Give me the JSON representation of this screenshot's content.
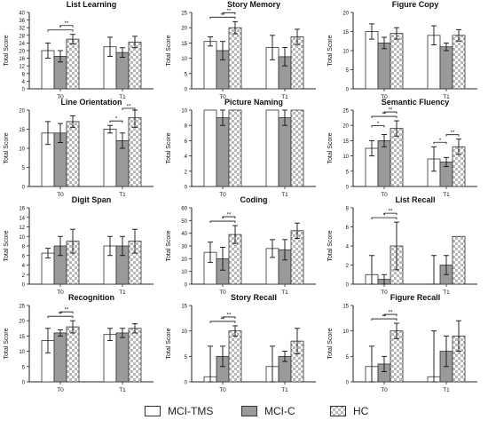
{
  "series": [
    {
      "name": "MCI-TMS",
      "fill": "#ffffff",
      "pattern": "none"
    },
    {
      "name": "MCI-C",
      "fill": "#9a9a9a",
      "pattern": "none"
    },
    {
      "name": "HC",
      "fill": "#ffffff",
      "pattern": "checker"
    }
  ],
  "chart_data": [
    {
      "type": "bar",
      "title": "List Learning",
      "ylabel": "Total Score",
      "categories": [
        "T0",
        "T1"
      ],
      "yticks": [
        0,
        4,
        8,
        12,
        16,
        20,
        24,
        28,
        32,
        36,
        40
      ],
      "ylim": [
        0,
        40
      ],
      "series": [
        {
          "name": "MCI-TMS",
          "values": [
            20,
            22
          ],
          "err": [
            4,
            5
          ]
        },
        {
          "name": "MCI-C",
          "values": [
            17,
            19
          ],
          "err": [
            3,
            2.5
          ]
        },
        {
          "name": "HC",
          "values": [
            26,
            24.5
          ],
          "err": [
            2.5,
            3
          ]
        }
      ],
      "brackets": [
        {
          "group": 0,
          "from": 0,
          "to": 2,
          "label": "*",
          "level": 0
        },
        {
          "group": 0,
          "from": 1,
          "to": 2,
          "label": "**",
          "level": 1
        }
      ]
    },
    {
      "type": "bar",
      "title": "Story Memory",
      "ylabel": "Total Score",
      "categories": [
        "T0",
        "T1"
      ],
      "yticks": [
        0,
        5,
        10,
        15,
        20,
        25
      ],
      "ylim": [
        0,
        25
      ],
      "series": [
        {
          "name": "MCI-TMS",
          "values": [
            15.5,
            13.5
          ],
          "err": [
            1.5,
            4
          ]
        },
        {
          "name": "MCI-C",
          "values": [
            12.5,
            10.5
          ],
          "err": [
            3,
            3
          ]
        },
        {
          "name": "HC",
          "values": [
            20,
            17
          ],
          "err": [
            2,
            2.5
          ]
        }
      ],
      "brackets": [
        {
          "group": 0,
          "from": 0,
          "to": 2,
          "label": "**",
          "level": 0
        },
        {
          "group": 0,
          "from": 1,
          "to": 2,
          "label": "**",
          "level": 1
        }
      ]
    },
    {
      "type": "bar",
      "title": "Figure Copy",
      "ylabel": "Total Score",
      "categories": [
        "T0",
        "T1"
      ],
      "yticks": [
        0,
        5,
        10,
        15,
        20
      ],
      "ylim": [
        0,
        20
      ],
      "series": [
        {
          "name": "MCI-TMS",
          "values": [
            15,
            14
          ],
          "err": [
            2,
            2.5
          ]
        },
        {
          "name": "MCI-C",
          "values": [
            12,
            11
          ],
          "err": [
            1.5,
            1
          ]
        },
        {
          "name": "HC",
          "values": [
            14.5,
            14
          ],
          "err": [
            1.5,
            1.5
          ]
        }
      ],
      "brackets": []
    },
    {
      "type": "bar",
      "title": "Line Orientation",
      "ylabel": "Total Score",
      "categories": [
        "T0",
        "T1"
      ],
      "yticks": [
        0,
        5,
        10,
        15,
        20
      ],
      "ylim": [
        0,
        20
      ],
      "series": [
        {
          "name": "MCI-TMS",
          "values": [
            14,
            15
          ],
          "err": [
            3,
            1
          ]
        },
        {
          "name": "MCI-C",
          "values": [
            14,
            12
          ],
          "err": [
            2.5,
            2
          ]
        },
        {
          "name": "HC",
          "values": [
            17,
            18
          ],
          "err": [
            1.5,
            2.5
          ]
        }
      ],
      "brackets": [
        {
          "group": 1,
          "from": 0,
          "to": 1,
          "label": "*",
          "level": 0
        },
        {
          "group": 1,
          "from": 1,
          "to": 2,
          "label": "**",
          "level": 0
        }
      ]
    },
    {
      "type": "bar",
      "title": "Picture Naming",
      "ylabel": "Total Score",
      "categories": [
        "T0",
        "T1"
      ],
      "yticks": [
        0,
        2,
        4,
        6,
        8,
        10
      ],
      "ylim": [
        0,
        10
      ],
      "series": [
        {
          "name": "MCI-TMS",
          "values": [
            10,
            10
          ],
          "err": [
            0,
            0
          ]
        },
        {
          "name": "MCI-C",
          "values": [
            9,
            9
          ],
          "err": [
            1,
            1
          ]
        },
        {
          "name": "HC",
          "values": [
            10,
            10
          ],
          "err": [
            0,
            0
          ]
        }
      ],
      "brackets": []
    },
    {
      "type": "bar",
      "title": "Semantic Fluency",
      "ylabel": "Total Score",
      "categories": [
        "T0",
        "T1"
      ],
      "yticks": [
        0,
        5,
        10,
        15,
        20,
        25
      ],
      "ylim": [
        0,
        25
      ],
      "series": [
        {
          "name": "MCI-TMS",
          "values": [
            12.5,
            9
          ],
          "err": [
            2.5,
            4
          ]
        },
        {
          "name": "MCI-C",
          "values": [
            15,
            8
          ],
          "err": [
            2,
            1.5
          ]
        },
        {
          "name": "HC",
          "values": [
            19,
            13
          ],
          "err": [
            2.5,
            2.5
          ]
        }
      ],
      "brackets": [
        {
          "group": 0,
          "from": 0,
          "to": 2,
          "label": "**",
          "level": 0
        },
        {
          "group": 0,
          "from": 0,
          "to": 1,
          "label": "*",
          "level": 1
        },
        {
          "group": 0,
          "from": 1,
          "to": 2,
          "label": "**",
          "level": 1
        },
        {
          "group": 1,
          "from": 0,
          "to": 1,
          "label": "*",
          "level": 0
        },
        {
          "group": 1,
          "from": 1,
          "to": 2,
          "label": "**",
          "level": 0
        }
      ]
    },
    {
      "type": "bar",
      "title": "Digit Span",
      "ylabel": "Total Score",
      "categories": [
        "T0",
        "T1"
      ],
      "yticks": [
        0,
        2,
        4,
        6,
        8,
        10,
        12,
        14,
        16
      ],
      "ylim": [
        0,
        16
      ],
      "series": [
        {
          "name": "MCI-TMS",
          "values": [
            6.5,
            8
          ],
          "err": [
            1,
            2
          ]
        },
        {
          "name": "MCI-C",
          "values": [
            8,
            8
          ],
          "err": [
            2,
            2
          ]
        },
        {
          "name": "HC",
          "values": [
            9,
            9
          ],
          "err": [
            2.5,
            2.5
          ]
        }
      ],
      "brackets": []
    },
    {
      "type": "bar",
      "title": "Coding",
      "ylabel": "Total Score",
      "categories": [
        "T0",
        "T1"
      ],
      "yticks": [
        0,
        10,
        20,
        30,
        40,
        50,
        60
      ],
      "ylim": [
        0,
        60
      ],
      "series": [
        {
          "name": "MCI-TMS",
          "values": [
            25,
            28
          ],
          "err": [
            8,
            7
          ]
        },
        {
          "name": "MCI-C",
          "values": [
            20,
            27
          ],
          "err": [
            9,
            8
          ]
        },
        {
          "name": "HC",
          "values": [
            39,
            42
          ],
          "err": [
            7,
            6
          ]
        }
      ],
      "brackets": [
        {
          "group": 0,
          "from": 0,
          "to": 2,
          "label": "*",
          "level": 0
        },
        {
          "group": 0,
          "from": 1,
          "to": 2,
          "label": "**",
          "level": 1
        }
      ]
    },
    {
      "type": "bar",
      "title": "List Recall",
      "ylabel": "Total Score",
      "categories": [
        "T0",
        "T1"
      ],
      "yticks": [
        0,
        2,
        4,
        6,
        8
      ],
      "ylim": [
        0,
        8
      ],
      "series": [
        {
          "name": "MCI-TMS",
          "values": [
            1,
            0
          ],
          "err": [
            2,
            3
          ]
        },
        {
          "name": "MCI-C",
          "values": [
            0.5,
            2
          ],
          "err": [
            0.5,
            1
          ]
        },
        {
          "name": "HC",
          "values": [
            4,
            5
          ],
          "err": [
            2.5,
            0
          ]
        }
      ],
      "brackets": [
        {
          "group": 0,
          "from": 0,
          "to": 2,
          "label": "*",
          "level": 0
        },
        {
          "group": 0,
          "from": 1,
          "to": 2,
          "label": "**",
          "level": 1
        }
      ]
    },
    {
      "type": "bar",
      "title": "Recognition",
      "ylabel": "Total Score",
      "categories": [
        "T0",
        "T1"
      ],
      "yticks": [
        0,
        5,
        10,
        15,
        20,
        25
      ],
      "ylim": [
        0,
        25
      ],
      "series": [
        {
          "name": "MCI-TMS",
          "values": [
            13.5,
            15.5
          ],
          "err": [
            4,
            2
          ]
        },
        {
          "name": "MCI-C",
          "values": [
            16,
            16
          ],
          "err": [
            1,
            1.5
          ]
        },
        {
          "name": "HC",
          "values": [
            18,
            17.5
          ],
          "err": [
            2,
            1.5
          ]
        }
      ],
      "brackets": [
        {
          "group": 0,
          "from": 0,
          "to": 2,
          "label": "**",
          "level": 0
        },
        {
          "group": 0,
          "from": 1,
          "to": 2,
          "label": "**",
          "level": 1
        }
      ]
    },
    {
      "type": "bar",
      "title": "Story Recall",
      "ylabel": "Total Score",
      "categories": [
        "T0",
        "T1"
      ],
      "yticks": [
        0,
        5,
        10,
        15
      ],
      "ylim": [
        0,
        15
      ],
      "series": [
        {
          "name": "MCI-TMS",
          "values": [
            1,
            3
          ],
          "err": [
            6,
            4
          ]
        },
        {
          "name": "MCI-C",
          "values": [
            5,
            5
          ],
          "err": [
            2,
            1
          ]
        },
        {
          "name": "HC",
          "values": [
            10,
            8
          ],
          "err": [
            1,
            2.5
          ]
        }
      ],
      "brackets": [
        {
          "group": 0,
          "from": 0,
          "to": 2,
          "label": "**",
          "level": 0
        },
        {
          "group": 0,
          "from": 1,
          "to": 2,
          "label": "**",
          "level": 1
        }
      ]
    },
    {
      "type": "bar",
      "title": "Figure Recall",
      "ylabel": "Total Score",
      "categories": [
        "T0",
        "T1"
      ],
      "yticks": [
        0,
        5,
        10,
        15
      ],
      "ylim": [
        0,
        15
      ],
      "series": [
        {
          "name": "MCI-TMS",
          "values": [
            3,
            1
          ],
          "err": [
            4,
            9
          ]
        },
        {
          "name": "MCI-C",
          "values": [
            3.5,
            6
          ],
          "err": [
            1.5,
            3
          ]
        },
        {
          "name": "HC",
          "values": [
            10,
            9
          ],
          "err": [
            1.5,
            3
          ]
        }
      ],
      "brackets": [
        {
          "group": 0,
          "from": 0,
          "to": 2,
          "label": "**",
          "level": 0
        },
        {
          "group": 0,
          "from": 1,
          "to": 2,
          "label": "**",
          "level": 1
        }
      ]
    }
  ]
}
